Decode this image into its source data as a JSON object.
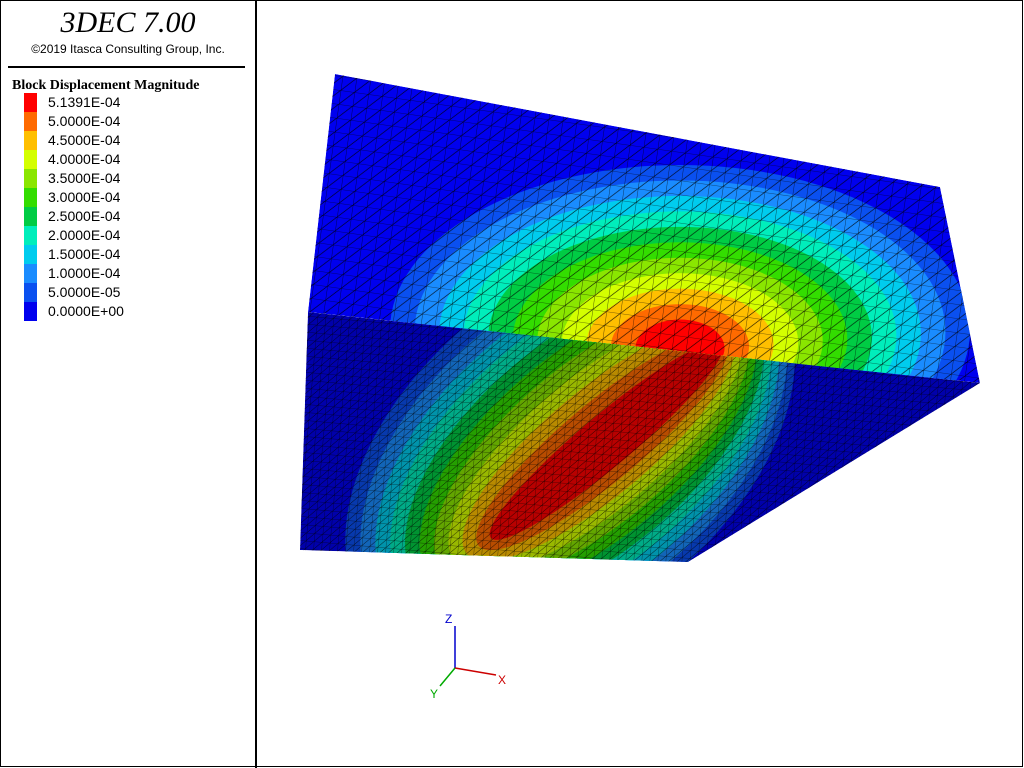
{
  "header": {
    "title": "3DEC 7.00",
    "copyright": "©2019 Itasca Consulting Group, Inc."
  },
  "legend": {
    "title": "Block Displacement Magnitude",
    "items": [
      {
        "label": "5.1391E-04",
        "color": "#ff0000"
      },
      {
        "label": "5.0000E-04",
        "color": "#ff6a00"
      },
      {
        "label": "4.5000E-04",
        "color": "#ffbf00"
      },
      {
        "label": "4.0000E-04",
        "color": "#d4ff00"
      },
      {
        "label": "3.5000E-04",
        "color": "#8ae600"
      },
      {
        "label": "3.0000E-04",
        "color": "#33dd00"
      },
      {
        "label": "2.5000E-04",
        "color": "#00cc44"
      },
      {
        "label": "2.0000E-04",
        "color": "#00eebb"
      },
      {
        "label": "1.5000E-04",
        "color": "#00ccee"
      },
      {
        "label": "1.0000E-04",
        "color": "#1a8cff"
      },
      {
        "label": "5.0000E-05",
        "color": "#0a50f0"
      },
      {
        "label": "0.0000E+00",
        "color": "#0000ee"
      }
    ]
  },
  "axes": {
    "z": "Z",
    "x": "X",
    "y": "Y"
  }
}
